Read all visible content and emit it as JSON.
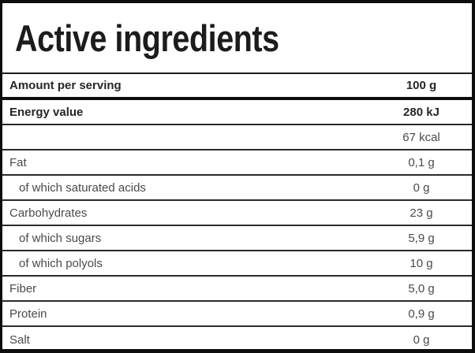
{
  "title": "Active ingredients",
  "table": {
    "header_row": {
      "label": "Amount per serving",
      "value": "100 g"
    },
    "rows": [
      {
        "label": "Energy value",
        "value": "280 kJ",
        "style": "bold"
      },
      {
        "label": "",
        "value": "67 kcal",
        "style": "regular"
      },
      {
        "label": "Fat",
        "value": "0,1 g",
        "style": "regular"
      },
      {
        "label": "of which saturated acids",
        "value": "0 g",
        "style": "sub"
      },
      {
        "label": "Carbohydrates",
        "value": "23 g",
        "style": "regular"
      },
      {
        "label": "of which sugars",
        "value": "5,9 g",
        "style": "sub"
      },
      {
        "label": "of which polyols",
        "value": "10 g",
        "style": "sub"
      },
      {
        "label": "Fiber",
        "value": "5,0 g",
        "style": "regular"
      },
      {
        "label": "Protein",
        "value": "0,9 g",
        "style": "regular"
      },
      {
        "label": "Salt",
        "value": "0 g",
        "style": "regular"
      }
    ]
  },
  "colors": {
    "frame_border": "#0d0d0d",
    "row_border": "#2a2a2a",
    "title_text": "#1c1c1c",
    "bold_text": "#262626",
    "regular_text": "#4a4a4a",
    "background": "#ffffff"
  }
}
